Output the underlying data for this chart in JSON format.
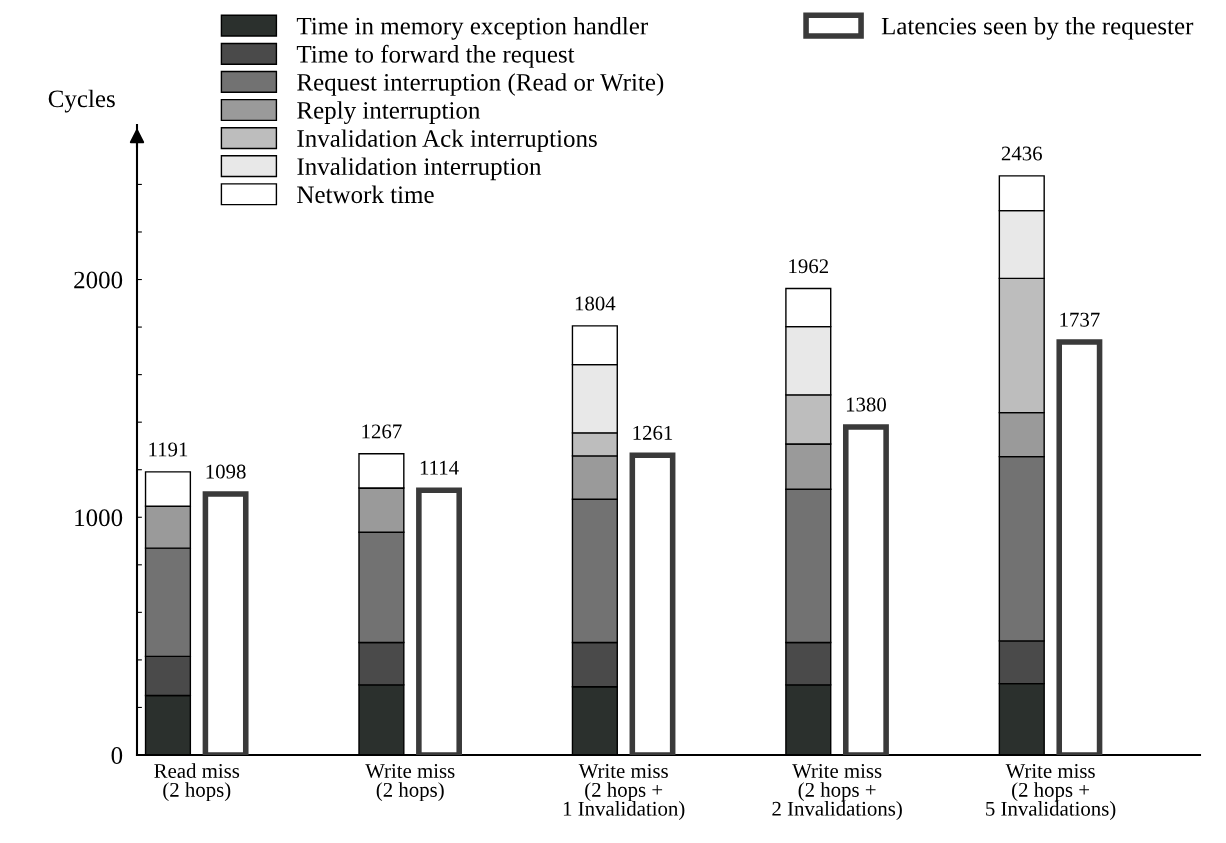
{
  "chart_data": [
    {
      "type": "bar",
      "stacked": true,
      "ylabel": "Cycles",
      "categories": [
        null,
        null,
        null,
        null,
        null
      ],
      "series": [
        {
          "name": "Time in memory exception handler",
          "color": "#2b302d",
          "values": [
            250,
            295,
            287,
            295,
            300
          ]
        },
        {
          "name": "Time to forward the request",
          "color": "#4a4a4a",
          "values": [
            165,
            178,
            186,
            178,
            180
          ]
        },
        {
          "name": "Request interruption (Read or Write)",
          "color": "#727272",
          "values": [
            455,
            464,
            603,
            645,
            775
          ]
        },
        {
          "name": "Reply interruption",
          "color": "#9a9a9a",
          "values": [
            177,
            186,
            182,
            190,
            185
          ]
        },
        {
          "name": "Invalidation Ack interruptions",
          "color": "#bdbdbd",
          "values": [
            0,
            0,
            97,
            207,
            565
          ]
        },
        {
          "name": "Invalidation interruption",
          "color": "#e8e8e8",
          "values": [
            0,
            0,
            287,
            287,
            285
          ]
        },
        {
          "name": "Network time",
          "color": "#ffffff",
          "values": [
            144,
            144,
            163,
            160,
            146
          ]
        }
      ],
      "totals": [
        "1191",
        "1267",
        "1804",
        "1962",
        "2436"
      ],
      "ylim": [
        0,
        2650
      ],
      "yticks": [
        0,
        {
          "value": 200,
          "label": null
        },
        {
          "value": 400,
          "label": null
        },
        {
          "value": 600,
          "label": null
        },
        {
          "value": 800,
          "label": null
        },
        1000,
        {
          "value": 1200,
          "label": null
        },
        {
          "value": 1400,
          "label": null
        },
        {
          "value": 1600,
          "label": null
        },
        {
          "value": 1800,
          "label": null
        },
        2000,
        {
          "value": 2200,
          "label": null
        },
        {
          "value": 2400,
          "label": null
        }
      ],
      "tick_labels": "y",
      "grid": false,
      "legend": "top left"
    },
    {
      "type": "bar",
      "categories": [
        "Read miss\n(2 hops)",
        "Write miss\n(2 hops)",
        "Write miss\n(2 hops +\n1 Invalidation)",
        "Write miss\n(2 hops +\n2 Invalidations)",
        "Write miss\n(2 hops +\n5 Invalidations)"
      ],
      "series": [
        {
          "name": "Latencies seen by the requester",
          "color": "#3a3a3a",
          "values": [
            1098,
            1114,
            1261,
            1380,
            1737
          ],
          "value_labels": [
            "1098",
            "1114",
            "1261",
            "1380",
            "1737"
          ]
        }
      ],
      "ylim": [
        0,
        2650
      ],
      "tick_labels": "x",
      "grid": false,
      "legend": "top right"
    }
  ]
}
